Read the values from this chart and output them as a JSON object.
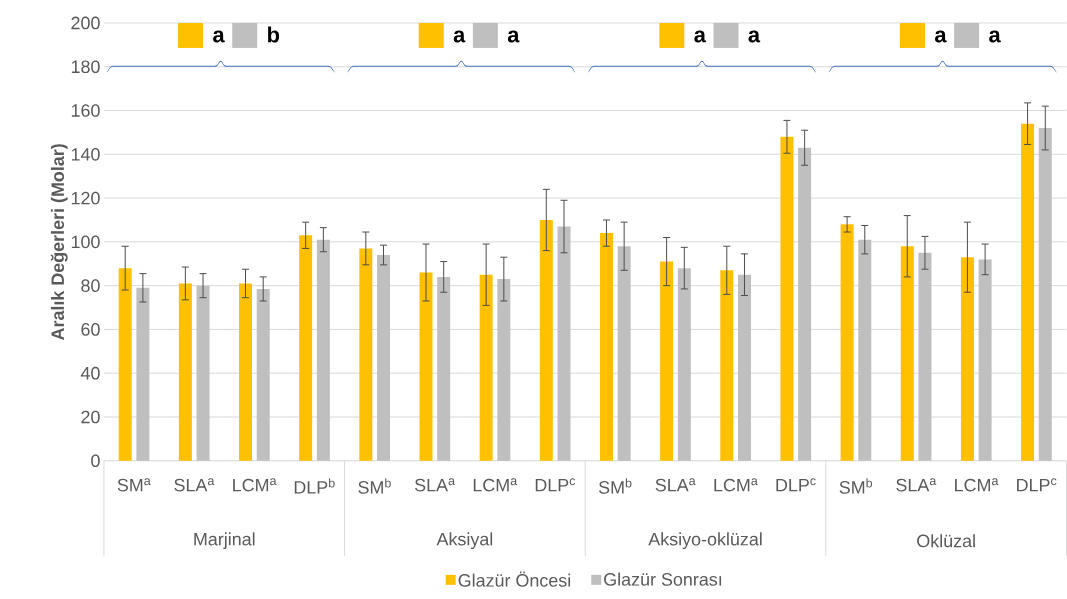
{
  "chart_data": {
    "type": "bar",
    "ylabel": "Aralık Değerleri (Molar)",
    "categories": [
      "SM$^{a}$",
      "SLA$^{a}$",
      "LCM$^{a}$",
      "DLP$^{b}$",
      "SM$^{b}$",
      "SLA$^{a}$",
      "LCM$^{a}$",
      "DLP$^{c}$",
      "SM$^{b}$",
      "SLA$^{a}$",
      "LCM$^{a}$",
      "DLP$^{c}$",
      "SM$^{b}$",
      "SLA$^{a}$",
      "LCM$^{a}$",
      "DLP$^{c}$"
    ],
    "series": [
      {
        "name": "Glazür Öncesi",
        "color": "#ffc000",
        "values": [
          88,
          81,
          81,
          103,
          97,
          86,
          85,
          110,
          104,
          91,
          87,
          148,
          108,
          98,
          93,
          154
        ],
        "errors": [
          10,
          7.5,
          6.5,
          6,
          7.5,
          13,
          14,
          14,
          6,
          11,
          11,
          7.5,
          3.5,
          14,
          16,
          9.5
        ]
      },
      {
        "name": "Glazür Sonrası",
        "color": "#bfbfbf",
        "values": [
          79,
          80,
          78.5,
          101,
          94,
          84,
          83,
          107,
          98,
          88,
          85,
          143,
          101,
          95,
          92,
          152
        ],
        "errors": [
          6.5,
          5.5,
          5.5,
          5.5,
          4.5,
          7,
          10,
          12,
          11,
          9.5,
          9.5,
          8,
          6.5,
          7.5,
          7,
          10
        ]
      }
    ],
    "ylim": [
      0,
      200
    ],
    "yticks": [
      0,
      20,
      40,
      60,
      80,
      100,
      120,
      140,
      160,
      180,
      200
    ],
    "grid": "y",
    "legend": "bottom",
    "annotations": [
      "Marjinal",
      "Aksiyal",
      "Aksiyo-oklüzal",
      "Oklüzal",
      "a",
      "b",
      "a",
      "a",
      "a",
      "a",
      "a",
      "a"
    ]
  }
}
